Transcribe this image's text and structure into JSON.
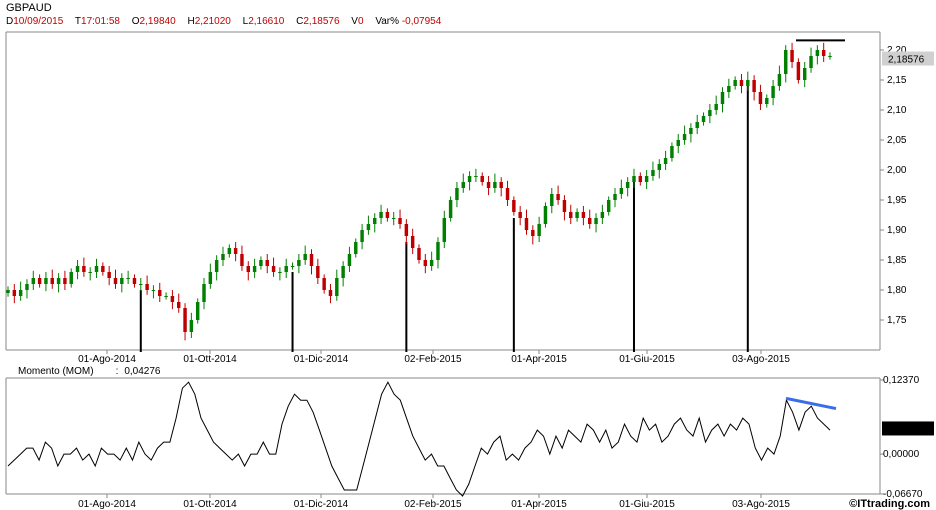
{
  "header": {
    "symbol": "GBPAUD",
    "date": "10/09/2015",
    "time": "17:01:58",
    "open": "2,19840",
    "high": "2,21020",
    "low": "2,16610",
    "close": "2,18576",
    "volume": "0",
    "var_pct": "-0,07954",
    "labels": {
      "date": "D",
      "time": "T",
      "open": "O",
      "high": "H",
      "low": "L",
      "close": "C",
      "volume": "V",
      "var": "Var%"
    }
  },
  "indicator": {
    "name": "Momento (MOM)",
    "separator": ":",
    "value": "0,04276"
  },
  "brand": "©ITtrading.com",
  "colors": {
    "up": "#008000",
    "down": "#c00000",
    "trendline": "#3a6ee8",
    "price_label_bg": "#d0d0d0"
  },
  "chart_data": [
    {
      "type": "candlestick",
      "title": "GBPAUD",
      "x_ticks": [
        "01-Ago-2014",
        "01-Ott-2014",
        "01-Dic-2014",
        "02-Feb-2015",
        "01-Apr-2015",
        "01-Giu-2015",
        "03-Ago-2015"
      ],
      "y_ticks": [
        "1,75",
        "1,80",
        "1,85",
        "1,90",
        "1,95",
        "2,00",
        "2,05",
        "2,10",
        "2,15",
        "2,20"
      ],
      "ylim": [
        1.7,
        2.23
      ],
      "last_price_label": "2,18576",
      "closes": [
        1.8,
        1.79,
        1.8,
        1.81,
        1.82,
        1.81,
        1.82,
        1.81,
        1.82,
        1.81,
        1.83,
        1.84,
        1.83,
        1.83,
        1.84,
        1.83,
        1.82,
        1.81,
        1.82,
        1.82,
        1.81,
        1.81,
        1.8,
        1.8,
        1.79,
        1.79,
        1.78,
        1.77,
        1.73,
        1.75,
        1.78,
        1.81,
        1.83,
        1.85,
        1.86,
        1.87,
        1.86,
        1.84,
        1.83,
        1.84,
        1.85,
        1.84,
        1.83,
        1.83,
        1.84,
        1.84,
        1.85,
        1.86,
        1.84,
        1.82,
        1.8,
        1.79,
        1.82,
        1.84,
        1.86,
        1.88,
        1.9,
        1.91,
        1.92,
        1.93,
        1.92,
        1.92,
        1.91,
        1.89,
        1.87,
        1.85,
        1.84,
        1.85,
        1.88,
        1.92,
        1.95,
        1.97,
        1.98,
        1.99,
        1.99,
        1.98,
        1.97,
        1.98,
        1.97,
        1.95,
        1.93,
        1.92,
        1.9,
        1.89,
        1.91,
        1.94,
        1.96,
        1.95,
        1.93,
        1.92,
        1.93,
        1.92,
        1.91,
        1.92,
        1.93,
        1.95,
        1.96,
        1.97,
        1.98,
        1.99,
        1.98,
        1.99,
        2.0,
        2.01,
        2.02,
        2.04,
        2.05,
        2.06,
        2.07,
        2.08,
        2.09,
        2.1,
        2.11,
        2.13,
        2.14,
        2.15,
        2.14,
        2.15,
        2.13,
        2.11,
        2.12,
        2.14,
        2.16,
        2.2,
        2.18,
        2.15,
        2.17,
        2.19,
        2.2,
        2.19,
        2.19
      ],
      "resistance_level": 2.216,
      "vertical_markers_date": [
        "2014-09-10",
        "2014-11-28",
        "2015-01-29",
        "2015-03-26",
        "2015-05-28",
        "2015-07-28"
      ]
    },
    {
      "type": "line",
      "title": "Momento (MOM)",
      "x_ticks": [
        "01-Ago-2014",
        "01-Ott-2014",
        "01-Dic-2014",
        "02-Feb-2015",
        "01-Apr-2015",
        "01-Giu-2015",
        "03-Ago-2015"
      ],
      "y_ticks": [
        "0,12370",
        "0,00000",
        "-0,06670"
      ],
      "ylim": [
        -0.0667,
        0.1237
      ],
      "last_value_label": "0,04276",
      "series": [
        {
          "values": [
            -0.02,
            -0.01,
            0.0,
            0.01,
            0.01,
            -0.01,
            0.02,
            0.01,
            -0.02,
            0.0,
            0.0,
            0.01,
            -0.01,
            0.0,
            -0.02,
            0.01,
            0.0,
            0.0,
            -0.01,
            0.01,
            -0.01,
            0.02,
            0.0,
            -0.01,
            0.01,
            0.02,
            0.02,
            0.06,
            0.11,
            0.12,
            0.1,
            0.06,
            0.04,
            0.02,
            0.01,
            0.0,
            -0.01,
            0.0,
            -0.02,
            0.0,
            0.0,
            0.02,
            0.0,
            0.0,
            0.05,
            0.08,
            0.1,
            0.09,
            0.09,
            0.07,
            0.04,
            0.01,
            -0.02,
            -0.04,
            -0.06,
            -0.06,
            -0.06,
            -0.02,
            0.02,
            0.06,
            0.1,
            0.12,
            0.1,
            0.09,
            0.06,
            0.03,
            0.01,
            -0.01,
            0.0,
            -0.02,
            -0.02,
            -0.04,
            -0.06,
            -0.07,
            -0.05,
            -0.02,
            0.01,
            0.0,
            0.02,
            0.03,
            -0.01,
            0.0,
            -0.01,
            0.01,
            0.02,
            0.04,
            0.03,
            0.0,
            0.03,
            0.01,
            0.04,
            0.03,
            0.02,
            0.05,
            0.04,
            0.02,
            0.04,
            0.01,
            0.02,
            0.05,
            0.03,
            0.02,
            0.06,
            0.04,
            0.05,
            0.02,
            0.03,
            0.05,
            0.06,
            0.04,
            0.03,
            0.06,
            0.02,
            0.04,
            0.05,
            0.03,
            0.05,
            0.04,
            0.06,
            0.05,
            0.01,
            -0.01,
            0.01,
            0.0,
            0.03,
            0.09,
            0.07,
            0.04,
            0.07,
            0.08,
            0.06,
            0.05,
            0.04
          ],
          "color": "#000000"
        }
      ],
      "trendline": {
        "from": 0.093,
        "to": 0.076
      }
    }
  ]
}
